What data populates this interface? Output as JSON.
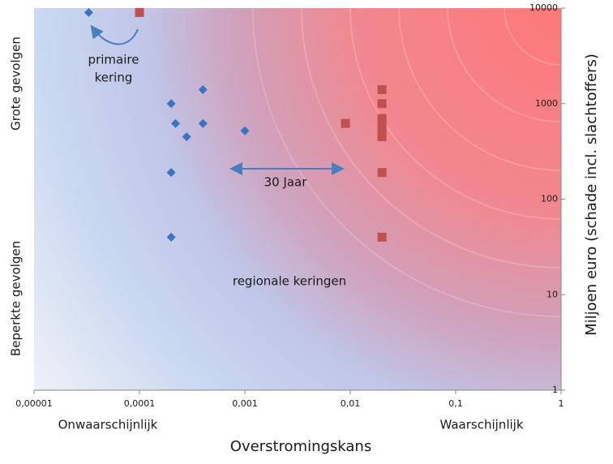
{
  "chart_data": {
    "type": "scatter",
    "xscale": "log",
    "yscale": "log",
    "xlim": [
      1e-05,
      1
    ],
    "ylim": [
      1,
      10000
    ],
    "xticks": [
      {
        "value": 1e-05,
        "label": "0,00001"
      },
      {
        "value": 0.0001,
        "label": "0,0001"
      },
      {
        "value": 0.001,
        "label": "0,001"
      },
      {
        "value": 0.01,
        "label": "0,01"
      },
      {
        "value": 0.1,
        "label": "0,1"
      },
      1
    ],
    "yticks": [
      1,
      10,
      100,
      1000,
      10000
    ],
    "x_label": "Overstromingskans",
    "y_label": "Miljoen euro (schade incl. slachtoffers)",
    "x_low_label": "Onwaarschijnlijk",
    "x_high_label": "Waarschijnlijk",
    "y_high_label": "Grote gevolgen",
    "y_low_label": "Beperkte gevolgen",
    "annotations": [
      "primaire",
      "kering",
      "30 Jaar",
      "regionale keringen"
    ],
    "series": [
      {
        "color": "#3a73c0",
        "marker": "diamond",
        "x": [
          3.3e-05,
          0.0002,
          0.0004,
          0.00022,
          0.0004,
          0.00028,
          0.001,
          0.0002,
          0.0002
        ],
        "values": [
          9000,
          1000,
          1400,
          620,
          620,
          450,
          520,
          190,
          40
        ]
      },
      {
        "color": "#c0504d",
        "marker": "square",
        "x": [
          0.0001,
          0.009,
          0.02,
          0.02,
          0.02,
          0.02,
          0.02,
          0.02,
          0.02,
          0.02
        ],
        "values": [
          9000,
          620,
          1400,
          1000,
          700,
          620,
          530,
          450,
          190,
          40
        ]
      }
    ]
  }
}
